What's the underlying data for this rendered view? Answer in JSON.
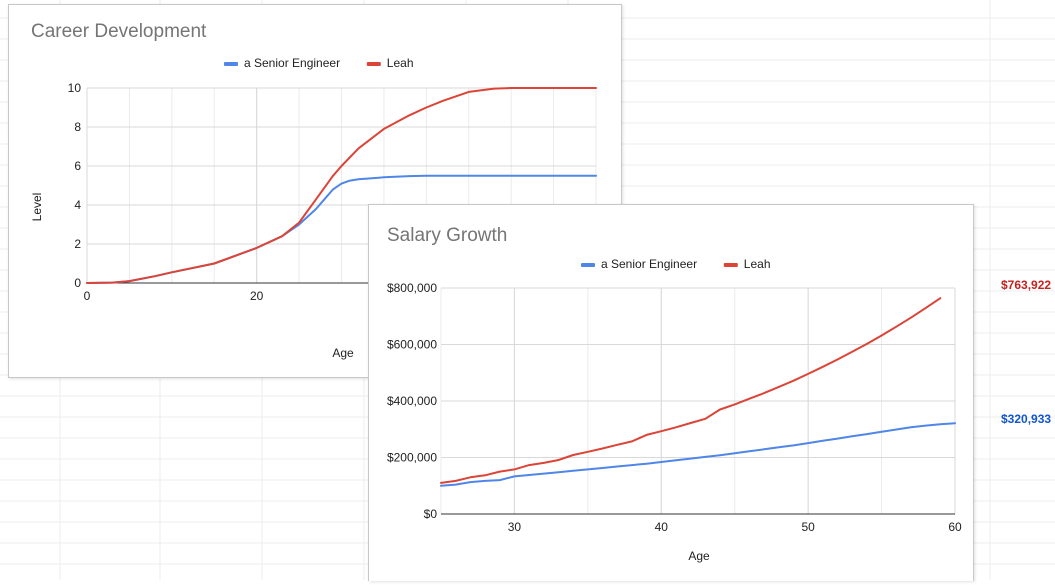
{
  "sheet_cells": {
    "leah_final_salary": "$763,922",
    "senior_final_salary": "$320,933",
    "leah_color": "#c5221f",
    "senior_color": "#1155cc"
  },
  "chart_data": [
    {
      "type": "line",
      "title": "Career Development",
      "xlabel": "Age",
      "ylabel": "Level",
      "legend_position": "top",
      "grid": true,
      "xlim": [
        0,
        60
      ],
      "ylim": [
        0,
        10
      ],
      "x_ticks": [
        "0",
        "20"
      ],
      "y_ticks": [
        "0",
        "2",
        "4",
        "6",
        "8",
        "10"
      ],
      "series": [
        {
          "name": "a Senior Engineer",
          "color": "#4f86e8",
          "x": [
            0,
            3,
            5,
            8,
            10,
            15,
            20,
            23,
            25,
            27,
            28,
            29,
            30,
            31,
            32,
            35,
            38,
            40,
            42,
            45,
            50,
            55,
            60
          ],
          "y": [
            0,
            0.02,
            0.1,
            0.35,
            0.55,
            1.0,
            1.8,
            2.4,
            3.0,
            3.8,
            4.3,
            4.8,
            5.1,
            5.25,
            5.32,
            5.42,
            5.48,
            5.5,
            5.5,
            5.5,
            5.5,
            5.5,
            5.5
          ]
        },
        {
          "name": "Leah",
          "color": "#db4437",
          "x": [
            0,
            3,
            5,
            8,
            10,
            15,
            20,
            23,
            25,
            27,
            29,
            30,
            32,
            35,
            38,
            40,
            42,
            45,
            48,
            50,
            52,
            55,
            60
          ],
          "y": [
            0,
            0.02,
            0.1,
            0.35,
            0.55,
            1.0,
            1.8,
            2.4,
            3.1,
            4.3,
            5.5,
            6.0,
            6.9,
            7.9,
            8.6,
            9.0,
            9.35,
            9.8,
            9.97,
            10.0,
            10.0,
            10.0,
            10.0
          ]
        }
      ]
    },
    {
      "type": "line",
      "title": "Salary Growth",
      "xlabel": "Age",
      "ylabel": "",
      "legend_position": "top",
      "grid": true,
      "xlim": [
        25,
        60
      ],
      "ylim": [
        0,
        800000
      ],
      "x_ticks": [
        "30",
        "40",
        "50",
        "60"
      ],
      "y_ticks": [
        "$0",
        "$200,000",
        "$400,000",
        "$600,000",
        "$800,000"
      ],
      "series": [
        {
          "name": "a Senior Engineer",
          "color": "#4f86e8",
          "x": [
            25,
            26,
            27,
            28,
            29,
            30,
            31,
            32,
            33,
            34,
            35,
            36,
            37,
            38,
            39,
            40,
            41,
            42,
            43,
            44,
            45,
            46,
            47,
            48,
            49,
            50,
            51,
            52,
            53,
            54,
            55,
            56,
            57,
            58,
            59,
            60
          ],
          "y": [
            100000,
            104000,
            113000,
            117000,
            120000,
            133000,
            138000,
            143000,
            148000,
            153000,
            158000,
            163000,
            168000,
            173000,
            178000,
            184000,
            190000,
            196000,
            202000,
            208000,
            215000,
            222000,
            229000,
            236000,
            243000,
            251000,
            259000,
            267000,
            275000,
            283000,
            291000,
            299000,
            307000,
            313000,
            318000,
            320933
          ]
        },
        {
          "name": "Leah",
          "color": "#db4437",
          "x": [
            25,
            26,
            27,
            28,
            29,
            30,
            31,
            32,
            33,
            34,
            35,
            36,
            37,
            38,
            39,
            40,
            41,
            42,
            43,
            44,
            45,
            46,
            47,
            48,
            49,
            50,
            51,
            52,
            53,
            54,
            55,
            56,
            57,
            58,
            59
          ],
          "y": [
            110000,
            117000,
            130000,
            137000,
            150000,
            158000,
            173000,
            181000,
            191000,
            209000,
            220000,
            232000,
            245000,
            257000,
            280000,
            293000,
            307000,
            322000,
            337000,
            370000,
            388000,
            408000,
            428000,
            450000,
            472000,
            496000,
            521000,
            547000,
            574000,
            602000,
            632000,
            663000,
            695000,
            729000,
            763922
          ]
        }
      ]
    }
  ]
}
